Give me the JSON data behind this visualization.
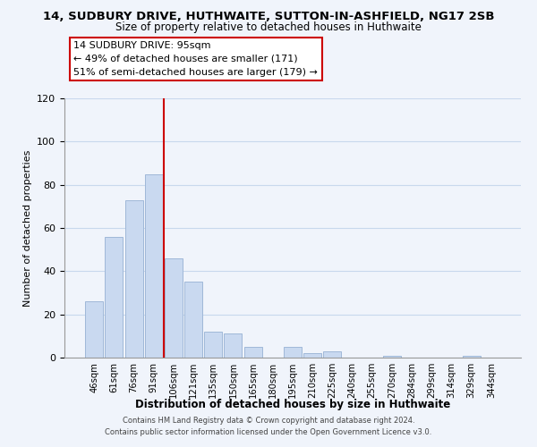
{
  "title_line1": "14, SUDBURY DRIVE, HUTHWAITE, SUTTON-IN-ASHFIELD, NG17 2SB",
  "title_line2": "Size of property relative to detached houses in Huthwaite",
  "xlabel": "Distribution of detached houses by size in Huthwaite",
  "ylabel": "Number of detached properties",
  "bar_labels": [
    "46sqm",
    "61sqm",
    "76sqm",
    "91sqm",
    "106sqm",
    "121sqm",
    "135sqm",
    "150sqm",
    "165sqm",
    "180sqm",
    "195sqm",
    "210sqm",
    "225sqm",
    "240sqm",
    "255sqm",
    "270sqm",
    "284sqm",
    "299sqm",
    "314sqm",
    "329sqm",
    "344sqm"
  ],
  "bar_values": [
    26,
    56,
    73,
    85,
    46,
    35,
    12,
    11,
    5,
    0,
    5,
    2,
    3,
    0,
    0,
    1,
    0,
    0,
    0,
    1,
    0
  ],
  "bar_color": "#c9d9f0",
  "bar_edgecolor": "#a0b8d8",
  "vline_x": 3.5,
  "vline_color": "#cc0000",
  "ylim": [
    0,
    120
  ],
  "yticks": [
    0,
    20,
    40,
    60,
    80,
    100,
    120
  ],
  "annotation_title": "14 SUDBURY DRIVE: 95sqm",
  "annotation_line1": "← 49% of detached houses are smaller (171)",
  "annotation_line2": "51% of semi-detached houses are larger (179) →",
  "footer_line1": "Contains HM Land Registry data © Crown copyright and database right 2024.",
  "footer_line2": "Contains public sector information licensed under the Open Government Licence v3.0.",
  "background_color": "#f0f4fb",
  "grid_color": "#c8d8ed"
}
